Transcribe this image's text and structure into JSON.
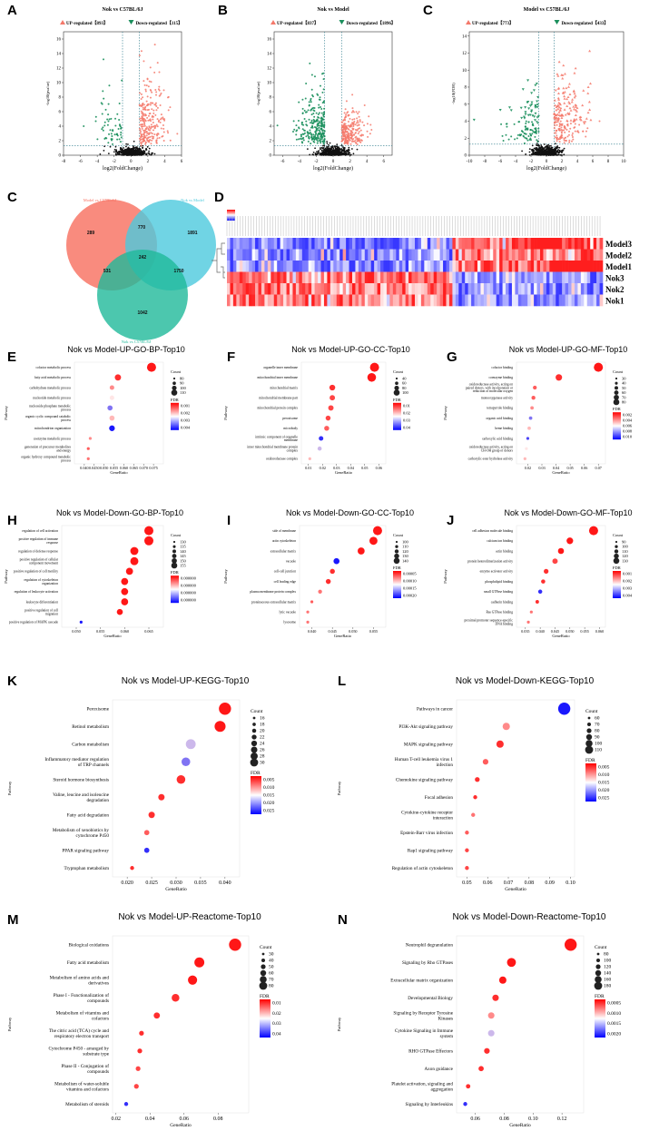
{
  "colors": {
    "up": "#f4796b",
    "down": "#1a8f5c",
    "ns": "#111111",
    "venn_a": "#f76e5e",
    "venn_b": "#4cc9dd",
    "venn_c": "#1fb99a",
    "fdr_high": "#ff0000",
    "fdr_low": "#0000ff"
  },
  "chart_data": [
    {
      "panel": "A",
      "type": "scatter",
      "title": "Nok vs C57BL/6J",
      "up_label": "UP-regulated【893】",
      "down_label": "Down-regulated【115】",
      "xlabel": "log2(FoldChange)",
      "ylabel": "-log10(pvalue)",
      "xlim": [
        -8,
        6
      ],
      "ylim": [
        0,
        17
      ],
      "xticks": [
        "-8",
        "-6",
        "-4",
        "-2",
        "0",
        "2",
        "4",
        "6"
      ],
      "yticks": [
        "0",
        "2",
        "4",
        "6",
        "8",
        "10",
        "12",
        "14",
        "16"
      ],
      "up_count": 893,
      "down_count": 115,
      "spread_up": [
        5,
        16
      ],
      "spread_down": [
        -6,
        15
      ]
    },
    {
      "panel": "B",
      "type": "scatter",
      "title": "Nok vs Model",
      "up_label": "UP-regulated【837】",
      "down_label": "Down-regulated【1896】",
      "xlabel": "log2(FoldChange)",
      "ylabel": "-log10(pvalue)",
      "xlim": [
        -7,
        7
      ],
      "ylim": [
        0,
        17
      ],
      "xticks": [
        "-6",
        "-4",
        "-2",
        "0",
        "2",
        "4",
        "6"
      ],
      "yticks": [
        "0",
        "2",
        "4",
        "6",
        "8",
        "10",
        "12",
        "14",
        "16"
      ],
      "up_count": 837,
      "down_count": 1896,
      "spread_up": [
        4,
        9
      ],
      "spread_down": [
        -6,
        15
      ]
    },
    {
      "panel": "C",
      "type": "scatter",
      "title": "Model vs C57BL/6J",
      "up_label": "UP-regulated【773】",
      "down_label": "Down-regulated【433】",
      "xlabel": "log2(FoldChange)",
      "ylabel": "-log10(FDR)",
      "xlim": [
        -10,
        10
      ],
      "ylim": [
        0,
        14.5
      ],
      "xticks": [
        "-10",
        "-8",
        "-6",
        "-4",
        "-2",
        "0",
        "2",
        "4",
        "6",
        "8",
        "10"
      ],
      "yticks": [
        "0",
        "2",
        "4",
        "6",
        "8",
        "10",
        "12",
        "14"
      ],
      "up_count": 773,
      "down_count": 433,
      "spread_up": [
        6,
        13.5
      ],
      "spread_down": [
        -8,
        11
      ]
    },
    {
      "panel": "C",
      "type": "venn",
      "sets": [
        "Model vs C57BL/6J",
        "Nok vs Model",
        "Nok vs C57BL/6J"
      ],
      "regions": {
        "a_only": "289",
        "b_only": "1891",
        "c_only": "1042",
        "ab": "770",
        "ac": "531",
        "bc": "1750",
        "abc": "242"
      }
    },
    {
      "panel": "D",
      "type": "heatmap",
      "rows": [
        "Model3",
        "Model2",
        "Model1",
        "Nok3",
        "Nok2",
        "Nok1"
      ]
    },
    {
      "panel": "E",
      "type": "scatter",
      "title": "Nok vs Model-UP-GO-BP-Top10",
      "xlabel": "GeneRatio",
      "ylabel": "Pathway",
      "xlim": [
        0.035,
        0.08
      ],
      "xticks": [
        "0.040",
        "0.0450",
        "0.050",
        "0.055",
        "0.060",
        "0.065",
        "0.070",
        "0.075"
      ],
      "categories": [
        "cofactor metabolic process",
        "fatty acid metabolic process",
        "carbohydrate metabolic process",
        "nucleotide metabolic process",
        "nucleoside phosphate metabolic process",
        "organic cyclic compound catabolic process",
        "mitochondrion organization",
        "coenzyme metabolic process",
        "generation of precursor metabolites and energy",
        "organic hydroxy compound metabolic process"
      ],
      "values": [
        0.074,
        0.057,
        0.054,
        0.054,
        0.053,
        0.054,
        0.054,
        0.043,
        0.042,
        0.042
      ],
      "count": [
        110,
        85,
        70,
        70,
        75,
        75,
        80,
        55,
        55,
        55
      ],
      "fdr_norm": [
        0.05,
        0.1,
        0.3,
        0.5,
        0.75,
        0.4,
        0.95,
        0.3,
        0.2,
        0.25
      ],
      "count_legend": [
        "80",
        "90",
        "100",
        "110"
      ],
      "fdr_legend": [
        "0.001",
        "0.002",
        "0.003",
        "0.004"
      ]
    },
    {
      "panel": "F",
      "type": "scatter",
      "title": "Nok vs Model-UP-GO-CC-Top10",
      "xlabel": "GeneRatio",
      "ylabel": "Pathway",
      "xlim": [
        0.005,
        0.065
      ],
      "xticks": [
        "0.01",
        "0.02",
        "0.03",
        "0.04",
        "0.05",
        "0.06"
      ],
      "categories": [
        "organelle inner membrane",
        "mitochondrial inner membrane",
        "mitochondrial matrix",
        "mitochondrial membrane part",
        "mitochondrial protein complex",
        "peroxisome",
        "microbody",
        "intrinsic component of organelle membrane",
        "inner mitochondrial membrane protein complex",
        "oxidoreductase complex"
      ],
      "values": [
        0.057,
        0.055,
        0.027,
        0.027,
        0.026,
        0.024,
        0.023,
        0.019,
        0.018,
        0.011
      ],
      "count": [
        100,
        95,
        60,
        55,
        55,
        50,
        50,
        45,
        40,
        25
      ],
      "fdr_norm": [
        0.05,
        0.05,
        0.1,
        0.15,
        0.15,
        0.15,
        0.2,
        0.9,
        0.6,
        0.4
      ],
      "count_legend": [
        "40",
        "60",
        "80",
        "100"
      ],
      "fdr_legend": [
        "0.01",
        "0.02",
        "0.03",
        "0.04"
      ]
    },
    {
      "panel": "G",
      "type": "scatter",
      "title": "Nok vs Model-UP-GO-MF-Top10",
      "xlabel": "GeneRatio",
      "ylabel": "Pathway",
      "xlim": [
        0.012,
        0.075
      ],
      "xticks": [
        "0.02",
        "0.03",
        "0.04",
        "0.05",
        "0.06",
        "0.07"
      ],
      "categories": [
        "cofactor binding",
        "coenzyme binding",
        "oxidoreductase activity, acting on paired donors, with incorporation or reduction of molecular oxygen",
        "monooxygenase activity",
        "tetrapyrrole binding",
        "organic acid binding",
        "heme binding",
        "carboxylic acid binding",
        "oxidoreductase activity, acting on CH-OH group of donors",
        "carboxylic ester hydrolase activity"
      ],
      "values": [
        0.07,
        0.042,
        0.025,
        0.024,
        0.023,
        0.022,
        0.021,
        0.02,
        0.019,
        0.018
      ],
      "count": [
        80,
        55,
        30,
        30,
        25,
        25,
        25,
        20,
        20,
        20
      ],
      "fdr_norm": [
        0.05,
        0.1,
        0.2,
        0.2,
        0.3,
        0.75,
        0.4,
        0.85,
        0.5,
        0.4
      ],
      "count_legend": [
        "30",
        "40",
        "50",
        "60",
        "70",
        "80"
      ],
      "fdr_legend": [
        "0.002",
        "0.004",
        "0.006",
        "0.008",
        "0.010"
      ]
    },
    {
      "panel": "H",
      "type": "scatter",
      "title": "Nok vs Model-Down-GO-BP-Top10",
      "xlabel": "GeneRatio",
      "ylabel": "Pathway",
      "xlim": [
        0.047,
        0.068
      ],
      "xticks": [
        "0.050",
        "0.055",
        "0.060",
        "0.065"
      ],
      "categories": [
        "regulation of cell activation",
        "positive regulation of immune response",
        "regulation of defense response",
        "positive regulation of cellular component movement",
        "positive regulation of cell motility",
        "regulation of cytoskeleton organization",
        "regulation of leukocyte activation",
        "leukocyte differentiation",
        "positive regulation of cell migration",
        "positive regulation of MAPK cascade"
      ],
      "values": [
        0.065,
        0.065,
        0.062,
        0.062,
        0.061,
        0.06,
        0.06,
        0.06,
        0.059,
        0.051
      ],
      "count": [
        155,
        155,
        150,
        150,
        145,
        145,
        145,
        145,
        140,
        125
      ],
      "fdr_norm": [
        0.05,
        0.05,
        0.05,
        0.05,
        0.05,
        0.05,
        0.05,
        0.05,
        0.05,
        0.95
      ],
      "count_legend": [
        "130",
        "135",
        "140",
        "145",
        "150",
        "155"
      ],
      "fdr_legend": [
        "0.000000",
        "0.000000",
        "0.000000",
        "0.000000"
      ]
    },
    {
      "panel": "I",
      "type": "scatter",
      "title": "Nok vs Model-Down-GO-CC-Top10",
      "xlabel": "GeneRatio",
      "ylabel": "Pathway",
      "xlim": [
        0.037,
        0.058
      ],
      "xticks": [
        "0.040",
        "0.045",
        "0.050",
        "0.055"
      ],
      "categories": [
        "side of membrane",
        "actin cytoskeleton",
        "extracellular matrix",
        "vacuole",
        "cell-cell junction",
        "cell leading edge",
        "plasma membrane protein complex",
        "proteinaceous extracellular matrix",
        "lytic vacuole",
        "lysosome"
      ],
      "values": [
        0.056,
        0.055,
        0.052,
        0.046,
        0.045,
        0.044,
        0.042,
        0.04,
        0.039,
        0.039
      ],
      "count": [
        140,
        130,
        120,
        110,
        100,
        100,
        90,
        80,
        80,
        80
      ],
      "fdr_norm": [
        0.05,
        0.05,
        0.05,
        0.95,
        0.1,
        0.1,
        0.25,
        0.2,
        0.25,
        0.25
      ],
      "count_legend": [
        "100",
        "110",
        "120",
        "130",
        "140"
      ],
      "fdr_legend": [
        "0.00005",
        "0.00010",
        "0.00015",
        "0.00020"
      ]
    },
    {
      "panel": "J",
      "type": "scatter",
      "title": "Nok vs Model-Down-GO-MF-Top10",
      "xlabel": "GeneRatio",
      "ylabel": "Pathway",
      "xlim": [
        0.032,
        0.062
      ],
      "xticks": [
        "0.035",
        "0.040",
        "0.045",
        "0.050",
        "0.055",
        "0.060"
      ],
      "categories": [
        "cell adhesion molecule binding",
        "calcium ion binding",
        "actin binding",
        "protein heterodimerization activity",
        "enzyme activator activity",
        "phospholipid binding",
        "small GTPase binding",
        "cadherin binding",
        "Ras GTPase binding",
        "proximal promoter sequence-specific DNA binding"
      ],
      "values": [
        0.058,
        0.05,
        0.047,
        0.045,
        0.042,
        0.041,
        0.04,
        0.039,
        0.037,
        0.036
      ],
      "count": [
        130,
        110,
        105,
        100,
        95,
        90,
        90,
        85,
        80,
        80
      ],
      "fdr_norm": [
        0.05,
        0.05,
        0.05,
        0.15,
        0.1,
        0.1,
        0.9,
        0.1,
        0.25,
        0.25
      ],
      "count_legend": [
        "90",
        "100",
        "110",
        "120",
        "130"
      ],
      "fdr_legend": [
        "0.001",
        "0.002",
        "0.003",
        "0.004"
      ]
    },
    {
      "panel": "K",
      "type": "scatter",
      "title": "Nok vs Model-UP-KEGG-Top10",
      "xlabel": "GeneRatio",
      "ylabel": "Pathway",
      "xlim": [
        0.017,
        0.043
      ],
      "xticks": [
        "0.020",
        "0.025",
        "0.030",
        "0.035",
        "0.040"
      ],
      "categories": [
        "Peroxisome",
        "Retinol metabolism",
        "Carbon metabolism",
        "Inflammatory mediator regulation of TRP channels",
        "Steroid hormone biosynthesis",
        "Valine, leucine and isoleucine degradation",
        "Fatty acid degradation",
        "Metabolism of xenobiotics by cytochrome P450",
        "PPAR signaling pathway",
        "Tryptophan metabolism"
      ],
      "values": [
        0.04,
        0.039,
        0.033,
        0.032,
        0.031,
        0.027,
        0.025,
        0.024,
        0.024,
        0.021
      ],
      "count": [
        30,
        28,
        26,
        24,
        24,
        20,
        20,
        18,
        18,
        16
      ],
      "fdr_norm": [
        0.05,
        0.05,
        0.6,
        0.75,
        0.1,
        0.1,
        0.1,
        0.2,
        0.9,
        0.1
      ],
      "count_legend": [
        "16",
        "18",
        "20",
        "22",
        "24",
        "26",
        "28",
        "30"
      ],
      "fdr_legend": [
        "0.005",
        "0.010",
        "0.015",
        "0.020",
        "0.025"
      ]
    },
    {
      "panel": "L",
      "type": "scatter",
      "title": "Nok vs Model-Down-KEGG-Top10",
      "xlabel": "GeneRatio",
      "ylabel": "Pathway",
      "xlim": [
        0.045,
        0.102
      ],
      "xticks": [
        "0.05",
        "0.06",
        "0.07",
        "0.08",
        "0.09",
        "0.10"
      ],
      "categories": [
        "Pathways in cancer",
        "PI3K-Akt signaling pathway",
        "MAPK signaling pathway",
        "Human T-cell leukemia virus 1 infection",
        "Chemokine signaling pathway",
        "Focal adhesion",
        "Cytokine-cytokine receptor interaction",
        "Epstein-Barr virus infection",
        "Rap1 signaling pathway",
        "Regulation of actin cytoskeleton"
      ],
      "values": [
        0.097,
        0.069,
        0.066,
        0.059,
        0.055,
        0.054,
        0.053,
        0.05,
        0.05,
        0.05
      ],
      "count": [
        110,
        80,
        80,
        70,
        65,
        60,
        60,
        60,
        60,
        60
      ],
      "fdr_norm": [
        0.95,
        0.3,
        0.1,
        0.2,
        0.1,
        0.1,
        0.25,
        0.2,
        0.15,
        0.15
      ],
      "count_legend": [
        "60",
        "70",
        "80",
        "90",
        "100",
        "110"
      ],
      "fdr_legend": [
        "0.005",
        "0.010",
        "0.015",
        "0.020",
        "0.025"
      ]
    },
    {
      "panel": "M",
      "type": "scatter",
      "title": "Nok vs Model-UP-Reactome-Top10",
      "xlabel": "GeneRatio",
      "ylabel": "Pathway",
      "xlim": [
        0.018,
        0.098
      ],
      "xticks": [
        "0.02",
        "0.04",
        "0.06",
        "0.08"
      ],
      "categories": [
        "Biological oxidations",
        "Fatty acid metabolism",
        "Metabolism of amino acids and derivatives",
        "Phase I - Functionalization of compounds",
        "Metabolism of vitamins and cofactors",
        "The citric acid (TCA) cycle and respiratory electron transport",
        "Cytochrome P450 - arranged by substrate type",
        "Phase II - Conjugation of compounds",
        "Metabolism of water-soluble vitamins and cofactors",
        "Metabolism of steroids"
      ],
      "values": [
        0.09,
        0.069,
        0.065,
        0.055,
        0.044,
        0.035,
        0.034,
        0.033,
        0.032,
        0.026
      ],
      "count": [
        80,
        65,
        60,
        50,
        40,
        30,
        30,
        30,
        30,
        25
      ],
      "fdr_norm": [
        0.05,
        0.05,
        0.05,
        0.1,
        0.1,
        0.1,
        0.1,
        0.15,
        0.15,
        0.9
      ],
      "count_legend": [
        "30",
        "40",
        "50",
        "60",
        "70",
        "80"
      ],
      "fdr_legend": [
        "0.01",
        "0.02",
        "0.03",
        "0.04"
      ]
    },
    {
      "panel": "N",
      "type": "scatter",
      "title": "Nok vs Model-Down-Reactome-Top10",
      "xlabel": "GeneRatio",
      "ylabel": "Pathway",
      "xlim": [
        0.047,
        0.135
      ],
      "xticks": [
        "0.06",
        "0.08",
        "0.10",
        "0.12"
      ],
      "categories": [
        "Neutrophil degranulation",
        "Signaling by Rho GTPases",
        "Extracellular matrix organization",
        "Developmental Biology",
        "Signaling by Receptor Tyrosine Kinases",
        "Cytokine Signaling in Immune system",
        "RHO GTPase Effectors",
        "Axon guidance",
        "Platelet activation, signaling and aggregation",
        "Signaling by Interleukins"
      ],
      "values": [
        0.126,
        0.085,
        0.079,
        0.074,
        0.071,
        0.071,
        0.068,
        0.064,
        0.055,
        0.053
      ],
      "count": [
        180,
        140,
        120,
        110,
        110,
        110,
        100,
        95,
        85,
        80
      ],
      "fdr_norm": [
        0.05,
        0.05,
        0.05,
        0.1,
        0.3,
        0.6,
        0.1,
        0.1,
        0.1,
        0.9
      ],
      "count_legend": [
        "80",
        "100",
        "120",
        "140",
        "160",
        "180"
      ],
      "fdr_legend": [
        "0.0005",
        "0.0010",
        "0.0015",
        "0.0020"
      ]
    }
  ]
}
